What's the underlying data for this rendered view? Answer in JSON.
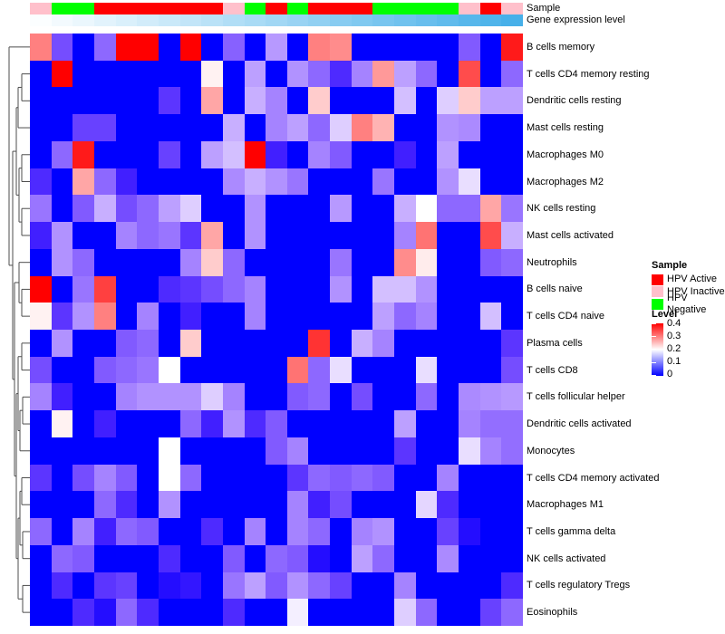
{
  "annotations": {
    "sample_label": "Sample",
    "gene_label": "Gene expression level",
    "sample_colors": {
      "HPV Active": "#ff0000",
      "HPV Inactive": "#ffc0cb",
      "HPV Negative": "#00ff00"
    },
    "gene_gradient": {
      "from": "#fbfeff",
      "to": "#47b0e9"
    }
  },
  "chart_data": {
    "type": "heatmap",
    "title": "",
    "rows": [
      "B cells memory",
      "T cells CD4 memory resting",
      "Dendritic cells resting",
      "Mast cells resting",
      "Macrophages M0",
      "Macrophages M2",
      "NK cells resting",
      "Mast cells activated",
      "Neutrophils",
      "B cells naive",
      "T cells CD4 naive",
      "Plasma cells",
      "T cells CD8",
      "T cells follicular helper",
      "Dendritic cells activated",
      "Monocytes",
      "T cells CD4 memory activated",
      "Macrophages M1",
      "T cells gamma delta",
      "NK cells activated",
      "T cells regulatory  Tregs",
      "Eosinophils"
    ],
    "column_count": 23,
    "value_scale": {
      "min": 0,
      "mid": 0.2,
      "max": 0.4,
      "min_color": "#0000ff",
      "mid_color": "#ffffff",
      "max_color": "#ff0000"
    },
    "column_annotation_sample": [
      "HPV Inactive",
      "HPV Negative",
      "HPV Negative",
      "HPV Active",
      "HPV Active",
      "HPV Active",
      "HPV Active",
      "HPV Active",
      "HPV Active",
      "HPV Inactive",
      "HPV Negative",
      "HPV Active",
      "HPV Negative",
      "HPV Active",
      "HPV Active",
      "HPV Active",
      "HPV Negative",
      "HPV Negative",
      "HPV Negative",
      "HPV Negative",
      "HPV Inactive",
      "HPV Active",
      "HPV Inactive"
    ],
    "values": [
      [
        0.3,
        0.08,
        0,
        0.1,
        0.4,
        0.4,
        0,
        0.4,
        0,
        0.095,
        0,
        0.135,
        0,
        0.3,
        0.29,
        0,
        0,
        0,
        0,
        0,
        0.09,
        0,
        0.38
      ],
      [
        0,
        0.4,
        0,
        0,
        0,
        0,
        0,
        0,
        0.21,
        0,
        0.14,
        0,
        0.13,
        0.1,
        0.05,
        0.12,
        0.28,
        0.14,
        0.1,
        0,
        0.34,
        0,
        0.1
      ],
      [
        0,
        0,
        0,
        0,
        0,
        0,
        0.06,
        0,
        0.27,
        0,
        0.15,
        0.12,
        0,
        0.24,
        0,
        0,
        0,
        0.16,
        0,
        0.17,
        0.24,
        0.14,
        0.14
      ],
      [
        0,
        0,
        0.07,
        0.07,
        0,
        0,
        0,
        0,
        0,
        0.15,
        0,
        0.12,
        0.14,
        0.1,
        0.17,
        0.3,
        0.26,
        0,
        0,
        0.13,
        0.125,
        0,
        0
      ],
      [
        0,
        0.1,
        0.38,
        0,
        0,
        0,
        0.07,
        0,
        0.14,
        0.16,
        0.4,
        0.04,
        0,
        0.12,
        0.09,
        0,
        0,
        0.04,
        0,
        0.14,
        0,
        0,
        0
      ],
      [
        0.05,
        0,
        0.27,
        0.1,
        0.04,
        0,
        0,
        0,
        0,
        0.125,
        0.15,
        0.13,
        0.11,
        0,
        0,
        0,
        0.11,
        0,
        0,
        0.13,
        0.18,
        0,
        0
      ],
      [
        0.11,
        0,
        0.09,
        0.15,
        0.08,
        0.1,
        0.14,
        0.17,
        0,
        0,
        0.13,
        0,
        0,
        0,
        0.135,
        0,
        0,
        0.15,
        0.2,
        0.1,
        0.1,
        0.27,
        0.11
      ],
      [
        0.04,
        0.13,
        0,
        0,
        0.12,
        0.1,
        0.11,
        0.06,
        0.27,
        0,
        0.13,
        0,
        0,
        0,
        0,
        0,
        0,
        0.12,
        0.31,
        0,
        0,
        0.34,
        0.15
      ],
      [
        0,
        0.13,
        0.1,
        0,
        0,
        0,
        0,
        0.12,
        0.24,
        0.1,
        0,
        0,
        0,
        0,
        0.11,
        0,
        0,
        0.29,
        0.215,
        0,
        0,
        0.09,
        0.1
      ],
      [
        0.4,
        0,
        0.11,
        0.35,
        0,
        0,
        0.05,
        0.06,
        0.08,
        0.1,
        0.12,
        0,
        0,
        0,
        0.13,
        0,
        0.16,
        0.16,
        0.13,
        0,
        0,
        0,
        0
      ],
      [
        0.21,
        0.06,
        0.13,
        0.3,
        0,
        0.12,
        0,
        0.04,
        0,
        0,
        0.12,
        0,
        0,
        0,
        0,
        0,
        0.14,
        0.1,
        0.12,
        0,
        0,
        0.16,
        0
      ],
      [
        0,
        0.13,
        0,
        0,
        0.09,
        0.1,
        0,
        0.24,
        0,
        0,
        0,
        0,
        0,
        0.36,
        0,
        0.15,
        0.12,
        0,
        0,
        0,
        0,
        0,
        0.06
      ],
      [
        0.08,
        0,
        0,
        0.09,
        0.1,
        0.11,
        0.2,
        0,
        0,
        0,
        0,
        0,
        0.31,
        0.1,
        0.18,
        0,
        0,
        0,
        0.18,
        0,
        0,
        0,
        0.08
      ],
      [
        0.12,
        0.04,
        0,
        0,
        0.12,
        0.13,
        0.13,
        0.13,
        0.17,
        0.12,
        0,
        0,
        0.09,
        0.1,
        0,
        0.08,
        0,
        0,
        0.1,
        0,
        0.125,
        0.13,
        0.135
      ],
      [
        0,
        0.21,
        0,
        0.04,
        0,
        0,
        0,
        0.1,
        0.04,
        0.13,
        0.05,
        0.09,
        0,
        0,
        0,
        0,
        0,
        0.14,
        0,
        0,
        0.12,
        0.105,
        0.105
      ],
      [
        0,
        0,
        0,
        0,
        0,
        0,
        0.2,
        0,
        0,
        0,
        0,
        0.09,
        0.12,
        0,
        0,
        0,
        0,
        0.06,
        0,
        0,
        0.18,
        0.12,
        0.105
      ],
      [
        0.06,
        0,
        0.08,
        0.12,
        0.09,
        0,
        0.2,
        0.1,
        0,
        0,
        0,
        0,
        0.06,
        0.1,
        0.09,
        0.1,
        0.09,
        0,
        0,
        0.12,
        0,
        0,
        0
      ],
      [
        0,
        0,
        0,
        0.1,
        0.05,
        0,
        0.13,
        0,
        0,
        0,
        0,
        0,
        0.12,
        0.04,
        0.08,
        0,
        0,
        0,
        0.175,
        0.05,
        0,
        0,
        0
      ],
      [
        0.1,
        0,
        0.12,
        0.04,
        0.1,
        0.09,
        0,
        0,
        0.05,
        0,
        0.12,
        0,
        0.12,
        0.1,
        0,
        0.12,
        0.13,
        0,
        0,
        0.07,
        0.02,
        0,
        0
      ],
      [
        0,
        0.1,
        0.09,
        0,
        0,
        0,
        0.05,
        0,
        0,
        0.09,
        0,
        0.1,
        0.09,
        0.02,
        0,
        0.14,
        0.1,
        0,
        0,
        0.125,
        0,
        0,
        0
      ],
      [
        0,
        0.05,
        0,
        0.06,
        0.07,
        0,
        0.02,
        0.03,
        0,
        0.11,
        0.14,
        0.09,
        0.13,
        0.1,
        0.07,
        0,
        0,
        0.12,
        0,
        0,
        0,
        0,
        0.05
      ],
      [
        0,
        0,
        0.05,
        0.02,
        0.1,
        0.05,
        0,
        0,
        0,
        0.05,
        0,
        0,
        0.19,
        0,
        0,
        0,
        0,
        0.17,
        0.1,
        0,
        0,
        0.07,
        0.1
      ]
    ]
  },
  "legend": {
    "sample": {
      "title": "Sample",
      "items": [
        {
          "label": "HPV Active",
          "color": "#ff0000"
        },
        {
          "label": "HPV Inactive",
          "color": "#ffc0cb"
        },
        {
          "label": "HPV Negative",
          "color": "#00ff00"
        }
      ]
    },
    "level": {
      "title": "Level",
      "ticks": [
        "0.4",
        "0.3",
        "0.2",
        "0.1",
        "0"
      ]
    }
  },
  "dendrogram": {
    "x": 10,
    "children": [
      1,
      {
        "x": 14,
        "children": [
          {
            "x": 18,
            "children": [
              {
                "x": 20,
                "children": [
                  {
                    "x": 24,
                    "children": [
                      2,
                      3
                    ]
                  },
                  4
                ]
              },
              {
                "x": 21,
                "children": [
                  {
                    "x": 24,
                    "children": [
                      5,
                      6
                    ]
                  },
                  {
                    "x": 24,
                    "children": [
                      7,
                      8
                    ]
                  }
                ]
              }
            ]
          },
          {
            "x": 16,
            "children": [
              {
                "x": 21,
                "children": [
                  9,
                  {
                    "x": 24,
                    "children": [
                      10,
                      11
                    ]
                  }
                ]
              },
              {
                "x": 18,
                "children": [
                  {
                    "x": 20,
                    "children": [
                      {
                        "x": 24,
                        "children": [
                          12,
                          13
                        ]
                      },
                      {
                        "x": 22,
                        "children": [
                          {
                            "x": 25,
                            "children": [
                              14,
                              15
                            ]
                          },
                          16
                        ]
                      }
                    ]
                  },
                  {
                    "x": 20,
                    "children": [
                      {
                        "x": 22,
                        "children": [
                          {
                            "x": 24,
                            "children": [
                              17,
                              18
                            ]
                          },
                          {
                            "x": 25,
                            "children": [
                              19,
                              20
                            ]
                          }
                        ]
                      },
                      {
                        "x": 25,
                        "children": [
                          21,
                          22
                        ]
                      }
                    ]
                  }
                ]
              }
            ]
          }
        ]
      }
    ]
  }
}
